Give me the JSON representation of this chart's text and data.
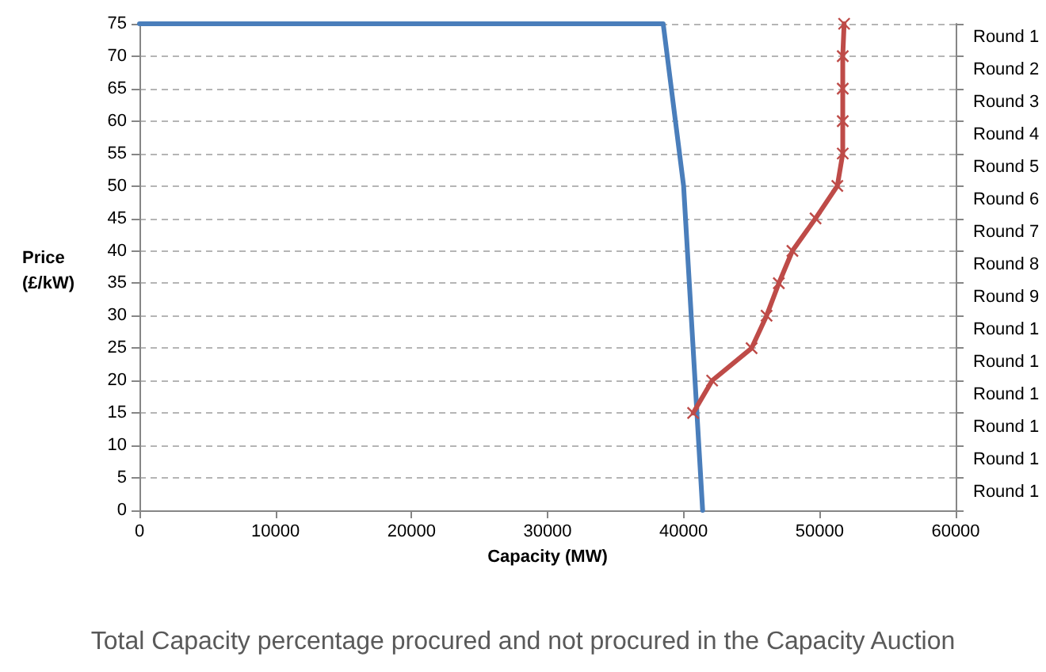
{
  "chart_data": {
    "type": "line",
    "title": "Total Capacity percentage procured and not procured in the Capacity Auction",
    "xlabel": "Capacity (MW)",
    "ylabel": "Price (£/kW)",
    "series": [
      {
        "color": "#4a7ebb",
        "marker": "none",
        "x": [
          0,
          38500,
          40000,
          41400
        ],
        "values": [
          75,
          75,
          50,
          0
        ]
      },
      {
        "color": "#be4b48",
        "marker": "cross",
        "x": [
          51800,
          51700,
          51700,
          51700,
          51700,
          51300,
          49700,
          48000,
          47000,
          46100,
          45000,
          42100,
          40700
        ],
        "values": [
          75,
          70,
          65,
          60,
          55,
          50,
          45,
          40,
          35,
          30,
          25,
          20,
          15
        ]
      }
    ],
    "xlim": [
      0,
      60000
    ],
    "xticks": [
      0,
      10000,
      20000,
      30000,
      40000,
      50000,
      60000
    ],
    "ylim": [
      0,
      75
    ],
    "yticks": [
      0,
      5,
      10,
      15,
      20,
      25,
      30,
      35,
      40,
      45,
      50,
      55,
      60,
      65,
      70,
      75
    ],
    "annotations": [
      "Round 1",
      "Round 2",
      "Round 3",
      "Round 4",
      "Round 5",
      "Round 6",
      "Round 7",
      "Round 8",
      "Round 9",
      "Round 1",
      "Round 1",
      "Round 1",
      "Round 1",
      "Round 1",
      "Round 1"
    ],
    "grid": "y"
  }
}
